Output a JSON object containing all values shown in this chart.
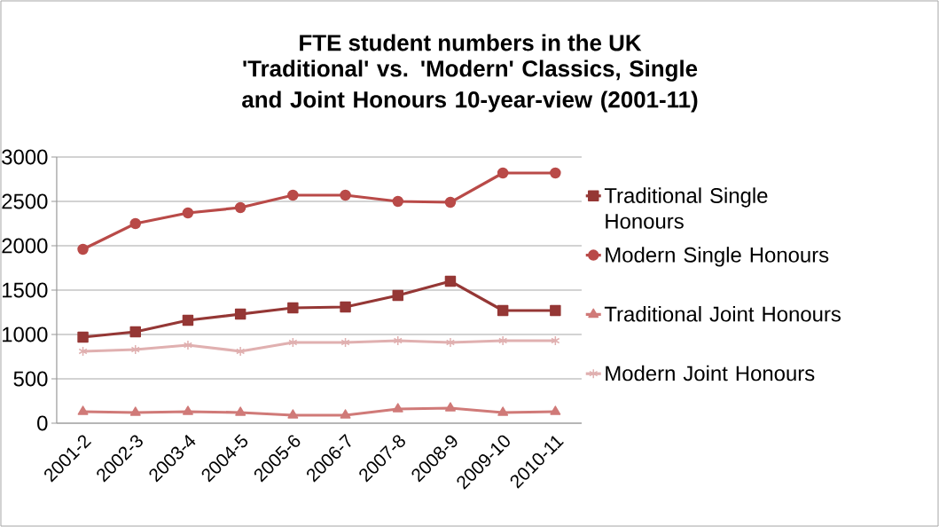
{
  "chart_data": {
    "type": "line",
    "title": "FTE student numbers in the UK",
    "subtitle": "'Traditional' vs. 'Modern' Classics, Single and Joint Honours 10-year-view (2001-11)",
    "categories": [
      "2001-2",
      "2002-3",
      "2003-4",
      "2004-5",
      "2005-6",
      "2006-7",
      "2007-8",
      "2008-9",
      "2009-10",
      "2010-11"
    ],
    "series": [
      {
        "name": "Traditional Single Honours",
        "color": "#953735",
        "marker": "square",
        "values": [
          970,
          1030,
          1160,
          1230,
          1300,
          1310,
          1440,
          1600,
          1270,
          1270
        ]
      },
      {
        "name": "Modern Single Honours",
        "color": "#b94a48",
        "marker": "circle",
        "values": [
          1960,
          2250,
          2370,
          2430,
          2570,
          2570,
          2500,
          2490,
          2820,
          2820
        ]
      },
      {
        "name": "Traditional Joint Honours",
        "color": "#d07a78",
        "marker": "triangle",
        "values": [
          130,
          120,
          130,
          120,
          90,
          90,
          160,
          170,
          120,
          130
        ]
      },
      {
        "name": "Modern Joint Honours",
        "color": "#e0b0b0",
        "marker": "cross",
        "values": [
          810,
          830,
          880,
          810,
          910,
          910,
          930,
          910,
          930,
          930
        ]
      }
    ],
    "ylim": [
      0,
      3000
    ],
    "yticks": [
      0,
      500,
      1000,
      1500,
      2000,
      2500,
      3000
    ],
    "grid": "y",
    "legend": "right",
    "line_style": "solid"
  }
}
